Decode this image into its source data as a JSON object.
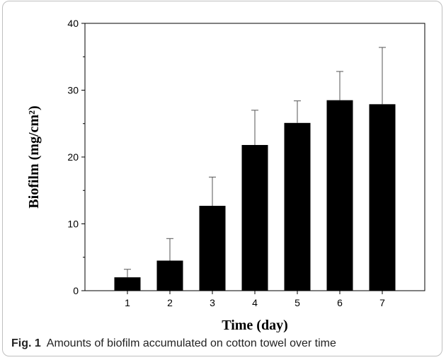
{
  "caption": {
    "label": "Fig. 1",
    "text": "Amounts of biofilm accumulated on cotton towel over time"
  },
  "colors": {
    "bar": "#000000",
    "axis": "#000000",
    "frame": "#bfbfbf"
  },
  "chart_data": {
    "type": "bar",
    "categories": [
      "1",
      "2",
      "3",
      "4",
      "5",
      "6",
      "7"
    ],
    "values": [
      2.0,
      4.5,
      12.7,
      21.8,
      25.1,
      28.5,
      27.9
    ],
    "error_bars": [
      1.2,
      3.3,
      4.3,
      5.2,
      3.3,
      4.3,
      8.5
    ],
    "xlabel": "Time (day)",
    "ylabel": "Biofilm (mg/cm²)",
    "ylim": [
      0,
      40
    ],
    "yticks": [
      "0",
      "10",
      "20",
      "30",
      "40"
    ],
    "grid": false,
    "legend": "none"
  }
}
